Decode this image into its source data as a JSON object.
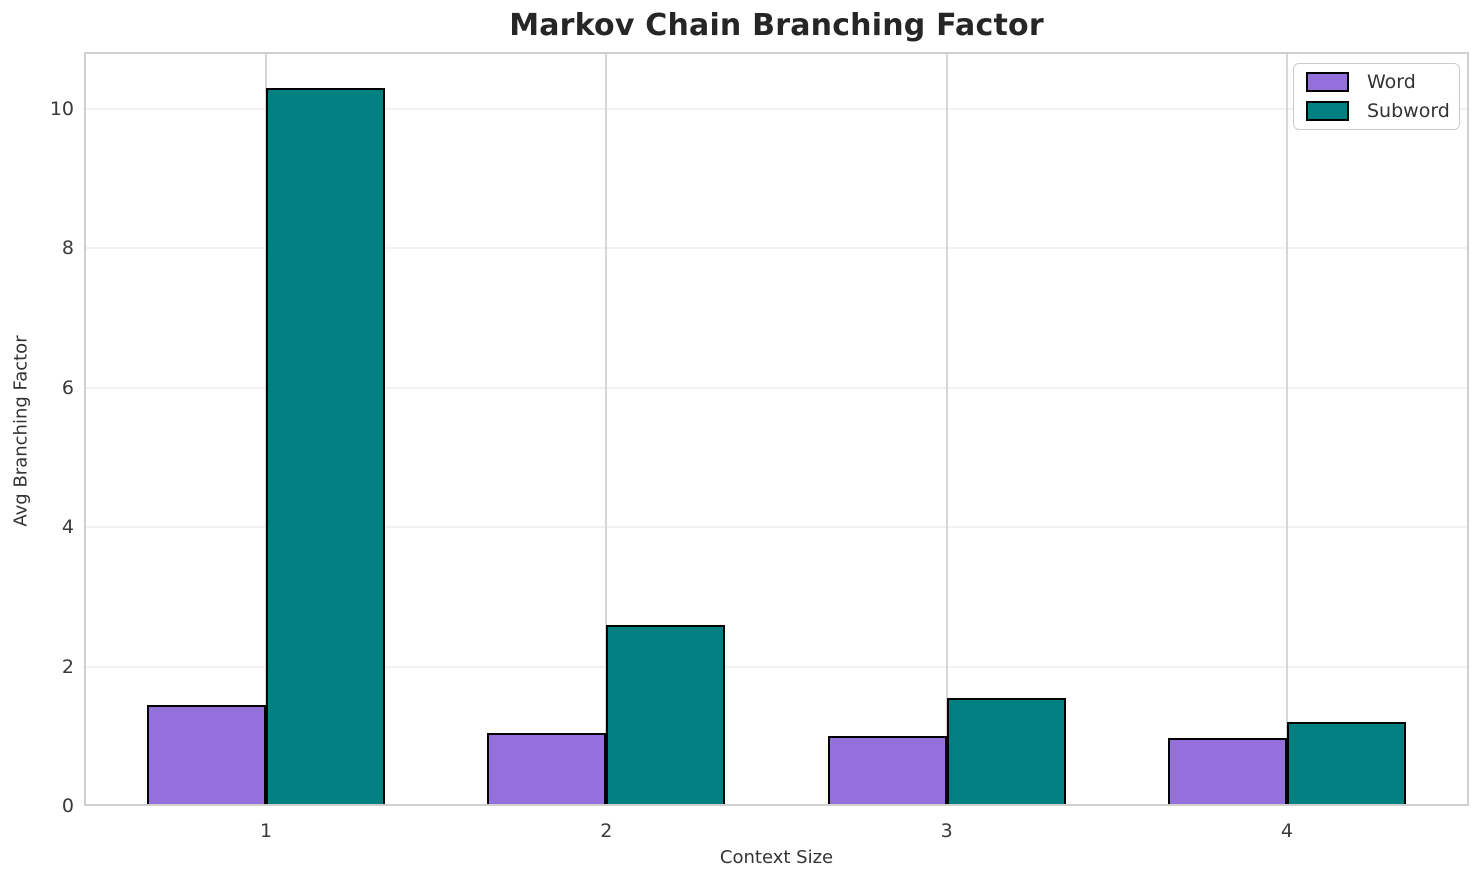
{
  "chart_data": {
    "type": "bar",
    "title": "Markov Chain Branching Factor",
    "xlabel": "Context Size",
    "ylabel": "Avg Branching Factor",
    "categories": [
      "1",
      "2",
      "3",
      "4"
    ],
    "series": [
      {
        "name": "Word",
        "color": "#9370DB",
        "values": [
          1.45,
          1.04,
          1.0,
          0.98
        ]
      },
      {
        "name": "Subword",
        "color": "#008080",
        "values": [
          10.3,
          2.6,
          1.55,
          1.2
        ]
      }
    ],
    "ylim": [
      0,
      10.815
    ],
    "yticks": [
      "0",
      "2",
      "4",
      "6",
      "8",
      "10"
    ],
    "grid": true,
    "legend_position": "upper right",
    "bar_edge_color": "#000000",
    "bar_width_fraction": 0.35
  }
}
